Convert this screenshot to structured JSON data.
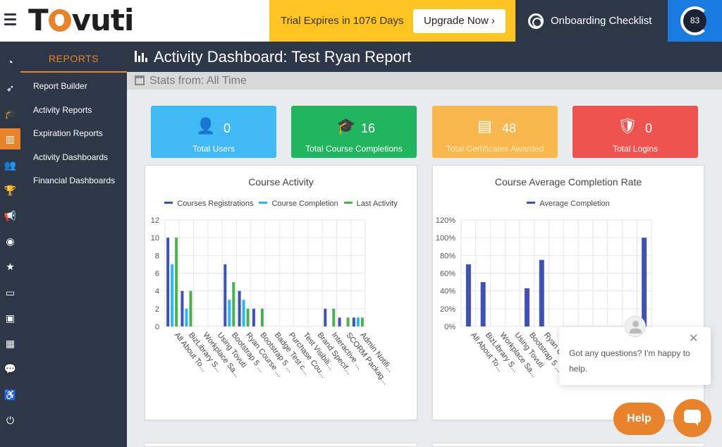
{
  "header": {
    "logo_text": "Tovuti",
    "trial_text": "Trial Expires in 1076 Days",
    "upgrade_label": "Upgrade Now ›",
    "onboarding_label": "Onboarding Checklist",
    "progress_value": "83",
    "progress_color": "#1a7ce0"
  },
  "icon_rail": [
    {
      "icon": "dashboard-icon",
      "glyph": "◔"
    },
    {
      "icon": "rocket-icon",
      "glyph": "➶"
    },
    {
      "icon": "graduation-cap-icon",
      "glyph": "🎓"
    },
    {
      "icon": "bar-chart-icon",
      "glyph": "▥",
      "active": true
    },
    {
      "icon": "users-icon",
      "glyph": "👥"
    },
    {
      "icon": "trophy-icon",
      "glyph": "🏆"
    },
    {
      "icon": "megaphone-icon",
      "glyph": "📢"
    },
    {
      "icon": "rss-icon",
      "glyph": "◉"
    },
    {
      "icon": "star-icon",
      "glyph": "★"
    },
    {
      "icon": "credit-card-icon",
      "glyph": "▭"
    },
    {
      "icon": "contact-card-icon",
      "glyph": "▣"
    },
    {
      "icon": "calendar-icon",
      "glyph": "▦"
    },
    {
      "icon": "chat-icon",
      "glyph": "💬"
    },
    {
      "icon": "accessibility-icon",
      "glyph": "♿"
    },
    {
      "icon": "power-icon",
      "glyph": "⏻"
    }
  ],
  "nav": {
    "title": "REPORTS",
    "items": [
      "Report Builder",
      "Activity Reports",
      "Expiration Reports",
      "Activity Dashboards",
      "Financial Dashboards"
    ]
  },
  "page": {
    "title": "Activity Dashboard: Test Ryan Report",
    "stats_from": "Stats from: All Time"
  },
  "stats": [
    {
      "value": "0",
      "label": "Total Users",
      "color": "#41b9f4",
      "icon": "users-icon",
      "label_color": "#ffffff"
    },
    {
      "value": "16",
      "label": "Total Course Completions",
      "color": "#22b560",
      "icon": "graduation-cap-icon",
      "label_color": "#ffffff"
    },
    {
      "value": "48",
      "label": "Total Certificates Awarded",
      "color": "#f8b84d",
      "icon": "certificate-icon",
      "label_color": "#fde9c4"
    },
    {
      "value": "0",
      "label": "Total Logins",
      "color": "#ef5350",
      "icon": "shield-check-icon",
      "label_color": "#ffffff"
    }
  ],
  "chat": {
    "message": "Got any questions? I'm happy to help.",
    "help_label": "Help",
    "close_glyph": "✕"
  },
  "chart_data": [
    {
      "type": "bar",
      "title": "Course Activity",
      "categories": [
        "All About To...",
        "BizLibrary S...",
        "Workplace Sa...",
        "Using Tovuti",
        "Bootstrap 5 ...",
        "Ryan Course ...",
        "Bootstrap 5 ...",
        "Badge Test c...",
        "Purchase Cou...",
        "Test Visibili...",
        "Brand Specif...",
        "Interactive ...",
        "SCORM Packag...",
        "Admin Notifi..."
      ],
      "series": [
        {
          "name": "Courses Registrations",
          "color": "#3f51b5",
          "values": [
            10,
            4,
            0,
            0,
            7,
            4,
            2,
            0,
            0,
            0,
            0,
            2,
            1,
            1
          ]
        },
        {
          "name": "Course Completion",
          "color": "#29b6f6",
          "values": [
            7,
            2,
            0,
            0,
            3,
            3,
            0,
            0,
            0,
            0,
            0,
            0,
            0,
            1
          ]
        },
        {
          "name": "Last Activity",
          "color": "#4caf50",
          "values": [
            10,
            4,
            0,
            0,
            5,
            2,
            2,
            0,
            0,
            0,
            0,
            2,
            1,
            1
          ]
        }
      ],
      "ylim": [
        0,
        12
      ],
      "yticks": [
        "0",
        "2",
        "4",
        "6",
        "8",
        "10",
        "12"
      ]
    },
    {
      "type": "bar",
      "title": "Course Average Completion Rate",
      "categories": [
        "All About To...",
        "BizLibrary S...",
        "Workplace Sa...",
        "Using Tovuti",
        "Bootstrap 5 ...",
        "Ryan Co...",
        "Boo...",
        "",
        "",
        "",
        "",
        "",
        ""
      ],
      "series": [
        {
          "name": "Average Completion",
          "color": "#3f51b5",
          "values": [
            70,
            50,
            0,
            0,
            43,
            75,
            0,
            0,
            0,
            0,
            0,
            0,
            100
          ]
        }
      ],
      "ylim": [
        0,
        120
      ],
      "yticks": [
        "0%",
        "20%",
        "40%",
        "60%",
        "80%",
        "100%",
        "120%"
      ]
    }
  ]
}
